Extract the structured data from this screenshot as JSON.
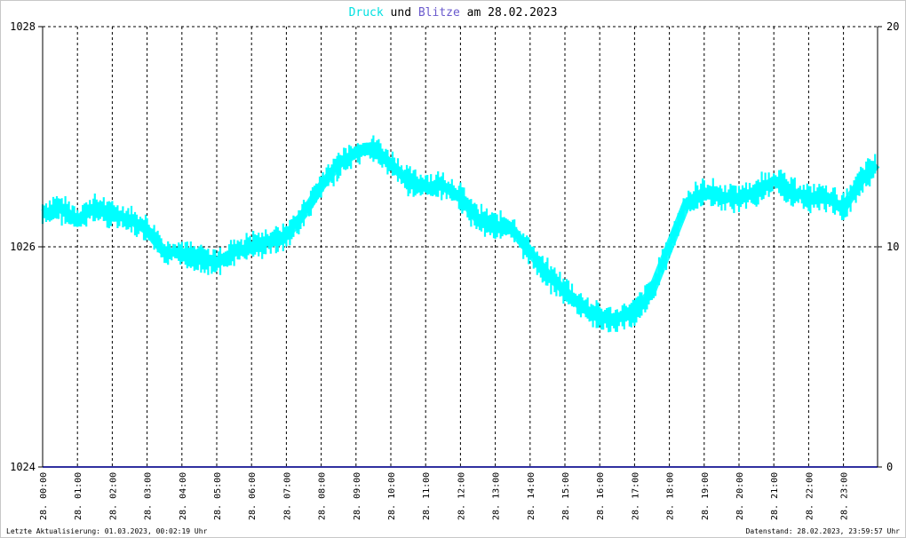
{
  "chart_data": {
    "type": "line",
    "title": {
      "series1": "Druck",
      "connector": "und",
      "series2": "Blitze",
      "date_prefix": "am",
      "date": "28.02.2023"
    },
    "colors": {
      "pressure": "#00ffff",
      "lightning": "#3030a0",
      "title_series1": "#00e0e0",
      "title_series2": "#6a5acd"
    },
    "y_left": {
      "ylim": [
        1024,
        1028
      ],
      "ticks": [
        "1024",
        "1026",
        "1028"
      ]
    },
    "y_right": {
      "ylim": [
        0,
        20
      ],
      "ticks": [
        "0",
        "10",
        "20"
      ]
    },
    "grid": true,
    "x_hours": [
      0,
      1,
      2,
      3,
      4,
      5,
      6,
      7,
      8,
      9,
      10,
      11,
      12,
      13,
      14,
      15,
      16,
      17,
      18,
      19,
      20,
      21,
      22,
      23
    ],
    "x_tick_labels": [
      "28. 00:00",
      "28. 01:00",
      "28. 02:00",
      "28. 03:00",
      "28. 04:00",
      "28. 05:00",
      "28. 06:00",
      "28. 07:00",
      "28. 08:00",
      "28. 09:00",
      "28. 10:00",
      "28. 11:00",
      "28. 12:00",
      "28. 13:00",
      "28. 14:00",
      "28. 15:00",
      "28. 16:00",
      "28. 17:00",
      "28. 18:00",
      "28. 19:00",
      "28. 20:00",
      "28. 21:00",
      "28. 22:00",
      "28. 23:00"
    ],
    "series": [
      {
        "name": "Druck",
        "x_hours": [
          0,
          0.5,
          1,
          1.5,
          2,
          2.5,
          3,
          3.5,
          4,
          4.5,
          5,
          5.5,
          6,
          6.5,
          7,
          7.5,
          8,
          8.5,
          9,
          9.5,
          10,
          10.5,
          11,
          11.5,
          12,
          12.5,
          13,
          13.5,
          14,
          14.5,
          15,
          15.5,
          16,
          16.5,
          17,
          17.5,
          18,
          18.5,
          19,
          19.5,
          20,
          20.5,
          21,
          21.5,
          22,
          22.5,
          23,
          23.5,
          23.95
        ],
        "values": [
          1026.3,
          1026.35,
          1026.25,
          1026.35,
          1026.3,
          1026.25,
          1026.15,
          1025.95,
          1025.95,
          1025.9,
          1025.85,
          1025.95,
          1026.0,
          1026.05,
          1026.1,
          1026.3,
          1026.55,
          1026.75,
          1026.85,
          1026.9,
          1026.75,
          1026.6,
          1026.55,
          1026.55,
          1026.45,
          1026.25,
          1026.2,
          1026.15,
          1025.95,
          1025.75,
          1025.6,
          1025.45,
          1025.35,
          1025.35,
          1025.4,
          1025.6,
          1026.0,
          1026.4,
          1026.5,
          1026.45,
          1026.45,
          1026.5,
          1026.6,
          1026.5,
          1026.45,
          1026.45,
          1026.35,
          1026.6,
          1026.75
        ]
      },
      {
        "name": "Blitze",
        "x_hours": [
          0,
          23.95
        ],
        "values": [
          0,
          0
        ]
      }
    ]
  },
  "footer": {
    "left": "Letzte Aktualisierung: 01.03.2023, 00:02:19 Uhr",
    "right": "Datenstand: 28.02.2023, 23:59:57 Uhr"
  }
}
